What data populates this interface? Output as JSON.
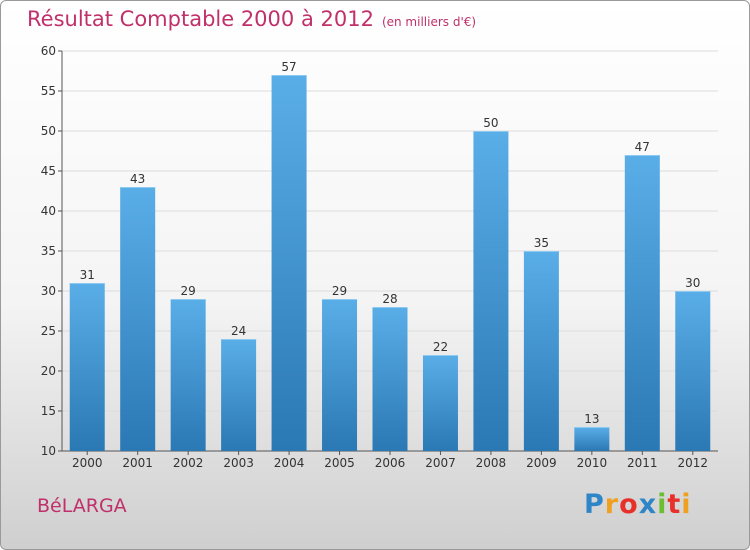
{
  "title": "Résultat Comptable 2000 à 2012",
  "unit": "(en milliers d'€)",
  "commune": "BéLARGA",
  "brand": {
    "letters": [
      "P",
      "r",
      "o",
      "x",
      "i",
      "t",
      "i"
    ],
    "colors": [
      "#2e86c8",
      "#f0a020",
      "#e8302a",
      "#2e86c8",
      "#6bbf30",
      "#e8302a",
      "#f0a020"
    ]
  },
  "colors": {
    "bar_top": "#5aaee8",
    "bar_bottom": "#2a78b4",
    "title": "#c0306a"
  },
  "chart_data": {
    "type": "bar",
    "title": "Résultat Comptable 2000 à 2012",
    "ylabel": "en milliers d'€",
    "xlabel": "",
    "categories": [
      "2000",
      "2001",
      "2002",
      "2003",
      "2004",
      "2005",
      "2006",
      "2007",
      "2008",
      "2009",
      "2010",
      "2011",
      "2012"
    ],
    "values": [
      31,
      43,
      29,
      24,
      57,
      29,
      28,
      22,
      50,
      35,
      13,
      47,
      30
    ],
    "ylim": [
      10,
      60
    ],
    "yticks": [
      10,
      15,
      20,
      25,
      30,
      35,
      40,
      45,
      50,
      55,
      60
    ],
    "grid": true
  }
}
